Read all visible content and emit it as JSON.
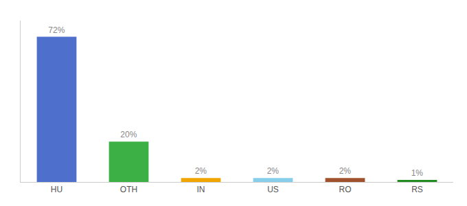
{
  "chart_data": {
    "type": "bar",
    "categories": [
      "HU",
      "OTH",
      "IN",
      "US",
      "RO",
      "RS"
    ],
    "values": [
      72,
      20,
      2,
      2,
      2,
      1
    ],
    "value_labels": [
      "72%",
      "20%",
      "2%",
      "2%",
      "2%",
      "1%"
    ],
    "colors": [
      "#4f6fcc",
      "#3cb044",
      "#f0a500",
      "#87ceeb",
      "#a0522d",
      "#228b22"
    ],
    "ylim": [
      0,
      80
    ],
    "grid": false,
    "data_labels": true,
    "tick_labels": "x"
  }
}
